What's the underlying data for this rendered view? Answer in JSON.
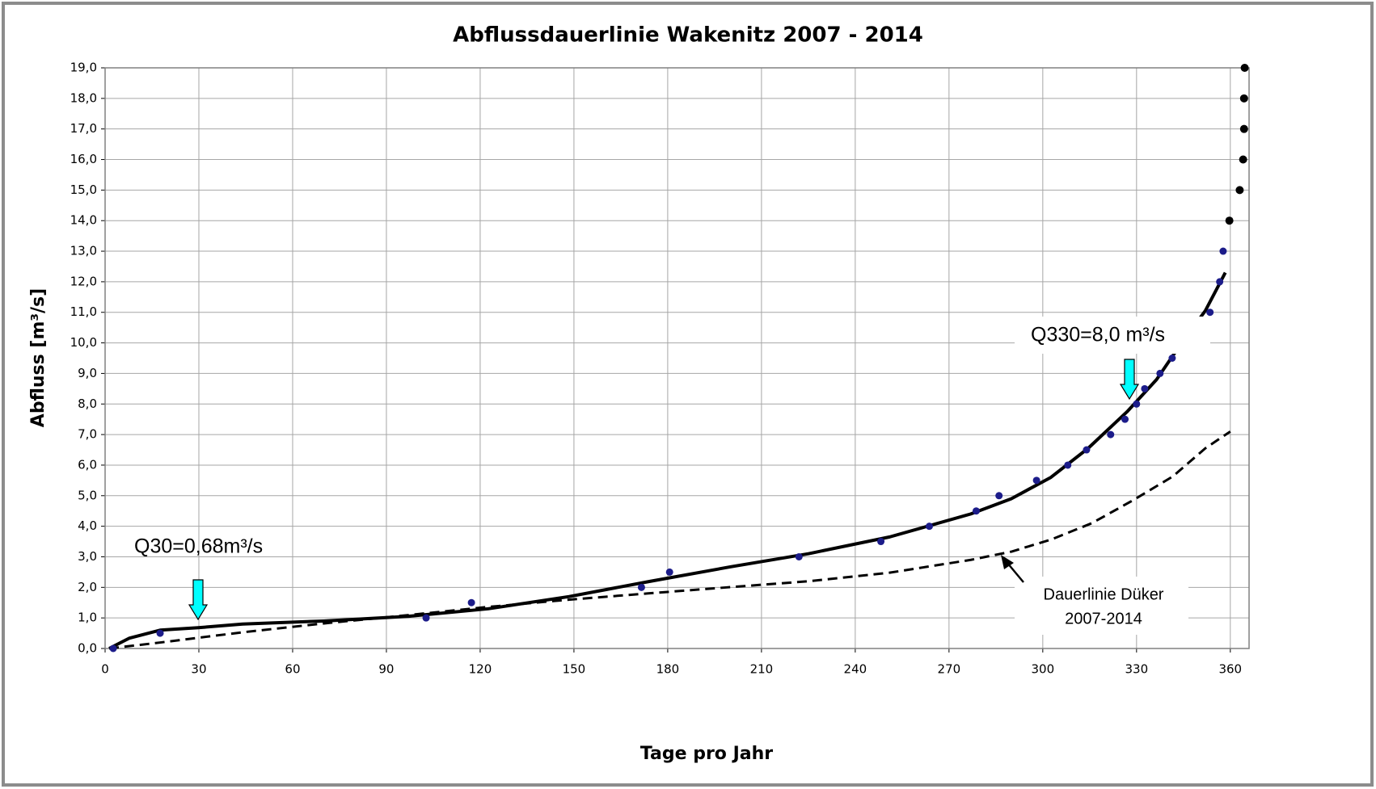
{
  "chart_data": {
    "type": "line",
    "title": "Abflussdauerlinie Wakenitz 2007 - 2014",
    "x_label": "Tage pro Jahr",
    "y_label": "Abfluss [m³/s]",
    "xlim": [
      0,
      366
    ],
    "ylim": [
      0,
      19
    ],
    "xticks": [
      0,
      30,
      60,
      90,
      120,
      150,
      180,
      210,
      240,
      270,
      300,
      330,
      360
    ],
    "yticks": [
      {
        "value": 0,
        "label": "0,0"
      },
      {
        "value": 1,
        "label": "1,0"
      },
      {
        "value": 2,
        "label": "2,0"
      },
      {
        "value": 3,
        "label": "3,0"
      },
      {
        "value": 4,
        "label": "4,0"
      },
      {
        "value": 5,
        "label": "5,0"
      },
      {
        "value": 6,
        "label": "6,0"
      },
      {
        "value": 7,
        "label": "7,0"
      },
      {
        "value": 8,
        "label": "8,0"
      },
      {
        "value": 9,
        "label": "9,0"
      },
      {
        "value": 10,
        "label": "10,0"
      },
      {
        "value": 11,
        "label": "11,0"
      },
      {
        "value": 12,
        "label": "12,0"
      },
      {
        "value": 13,
        "label": "13,0"
      },
      {
        "value": 14,
        "label": "14,0"
      },
      {
        "value": 15,
        "label": "15,0"
      },
      {
        "value": 16,
        "label": "16,0"
      },
      {
        "value": 17,
        "label": "17,0"
      },
      {
        "value": 18,
        "label": "18,0"
      },
      {
        "value": 19,
        "label": "19,0"
      }
    ],
    "grid": true,
    "series": [
      {
        "style": "dashed",
        "color": "#000000",
        "x": [
          1.3,
          18,
          44,
          70,
          95.8,
          121.6,
          147.5,
          173.4,
          199,
          225,
          251,
          277,
          290,
          302.8,
          315.7,
          328.7,
          341.6,
          352,
          360
        ],
        "values": [
          0,
          0.2,
          0.53,
          0.82,
          1.08,
          1.35,
          1.59,
          1.8,
          2.0,
          2.2,
          2.48,
          2.9,
          3.17,
          3.57,
          4.1,
          4.84,
          5.63,
          6.55,
          7.1
        ]
      },
      {
        "style": "solid",
        "color": "#000000",
        "x": [
          1.3,
          7.8,
          17.6,
          29.8,
          44,
          70,
          96.8,
          122.6,
          148.5,
          174.5,
          200,
          225,
          251,
          276.9,
          289.9,
          302.6,
          314.5,
          327,
          336.4,
          344,
          352,
          358.4
        ],
        "values": [
          0,
          0.34,
          0.6,
          0.68,
          0.8,
          0.9,
          1.05,
          1.3,
          1.7,
          2.2,
          2.67,
          3.1,
          3.65,
          4.4,
          4.9,
          5.6,
          6.55,
          7.75,
          8.8,
          9.94,
          11.05,
          12.3
        ]
      },
      {
        "style": "markers",
        "color": "#1c1c8a",
        "x": [
          2.6,
          17.6,
          102.7,
          117.2,
          171.6,
          180.6,
          222,
          248.2,
          263.7,
          278.7,
          286,
          298,
          308,
          314,
          321.7,
          326.3,
          330,
          332.6,
          337.5,
          341.4,
          353.5,
          356.6,
          357.7
        ],
        "values": [
          0,
          0.5,
          1.0,
          1.5,
          2.0,
          2.5,
          3.0,
          3.5,
          4.0,
          4.5,
          5.0,
          5.5,
          6.0,
          6.5,
          7.0,
          7.5,
          8.0,
          8.5,
          9.0,
          9.5,
          11.0,
          12.0,
          13.0
        ]
      },
      {
        "style": "markers",
        "color": "#000000",
        "x": [
          359.7,
          363,
          364.1,
          364.4,
          364.4,
          364.6
        ],
        "values": [
          14,
          15,
          16,
          17,
          18,
          19
        ]
      }
    ],
    "annotations": [
      "Q30=0,68m³/s",
      "Q330=8,0 m³/s",
      "Dauerlinie Düker",
      "2007-2014"
    ]
  }
}
